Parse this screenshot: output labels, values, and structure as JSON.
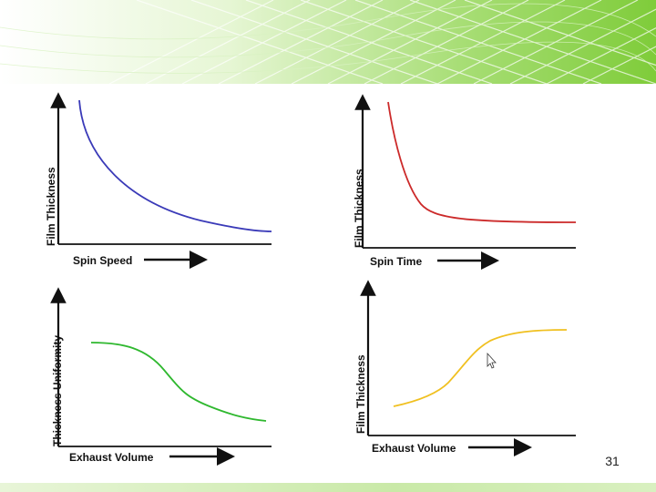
{
  "slide": {
    "page_number": "31",
    "colors": {
      "banner_green": "#7fcc3a",
      "banner_light": "#cdeeb0"
    }
  },
  "panels": [
    {
      "id": "thickness-vs-speed",
      "xlabel": "Spin Speed",
      "ylabel": "Film Thickness",
      "trend": "decreasing, leveling off",
      "color": "#3a3ab8"
    },
    {
      "id": "thickness-vs-time",
      "xlabel": "Spin Time",
      "ylabel": "Film Thickness",
      "trend": "rapid drop then flat",
      "color": "#cc2a2a"
    },
    {
      "id": "uniformity-vs-exhaust",
      "xlabel": "Exhaust Volume",
      "ylabel": "Thickness Uniformity",
      "trend": "decreasing, sigmoid",
      "color": "#2fb82f"
    },
    {
      "id": "thickness-vs-exhaust",
      "xlabel": "Exhaust Volume",
      "ylabel": "Film Thickness",
      "trend": "increasing, sigmoid",
      "color": "#f0c020"
    }
  ]
}
